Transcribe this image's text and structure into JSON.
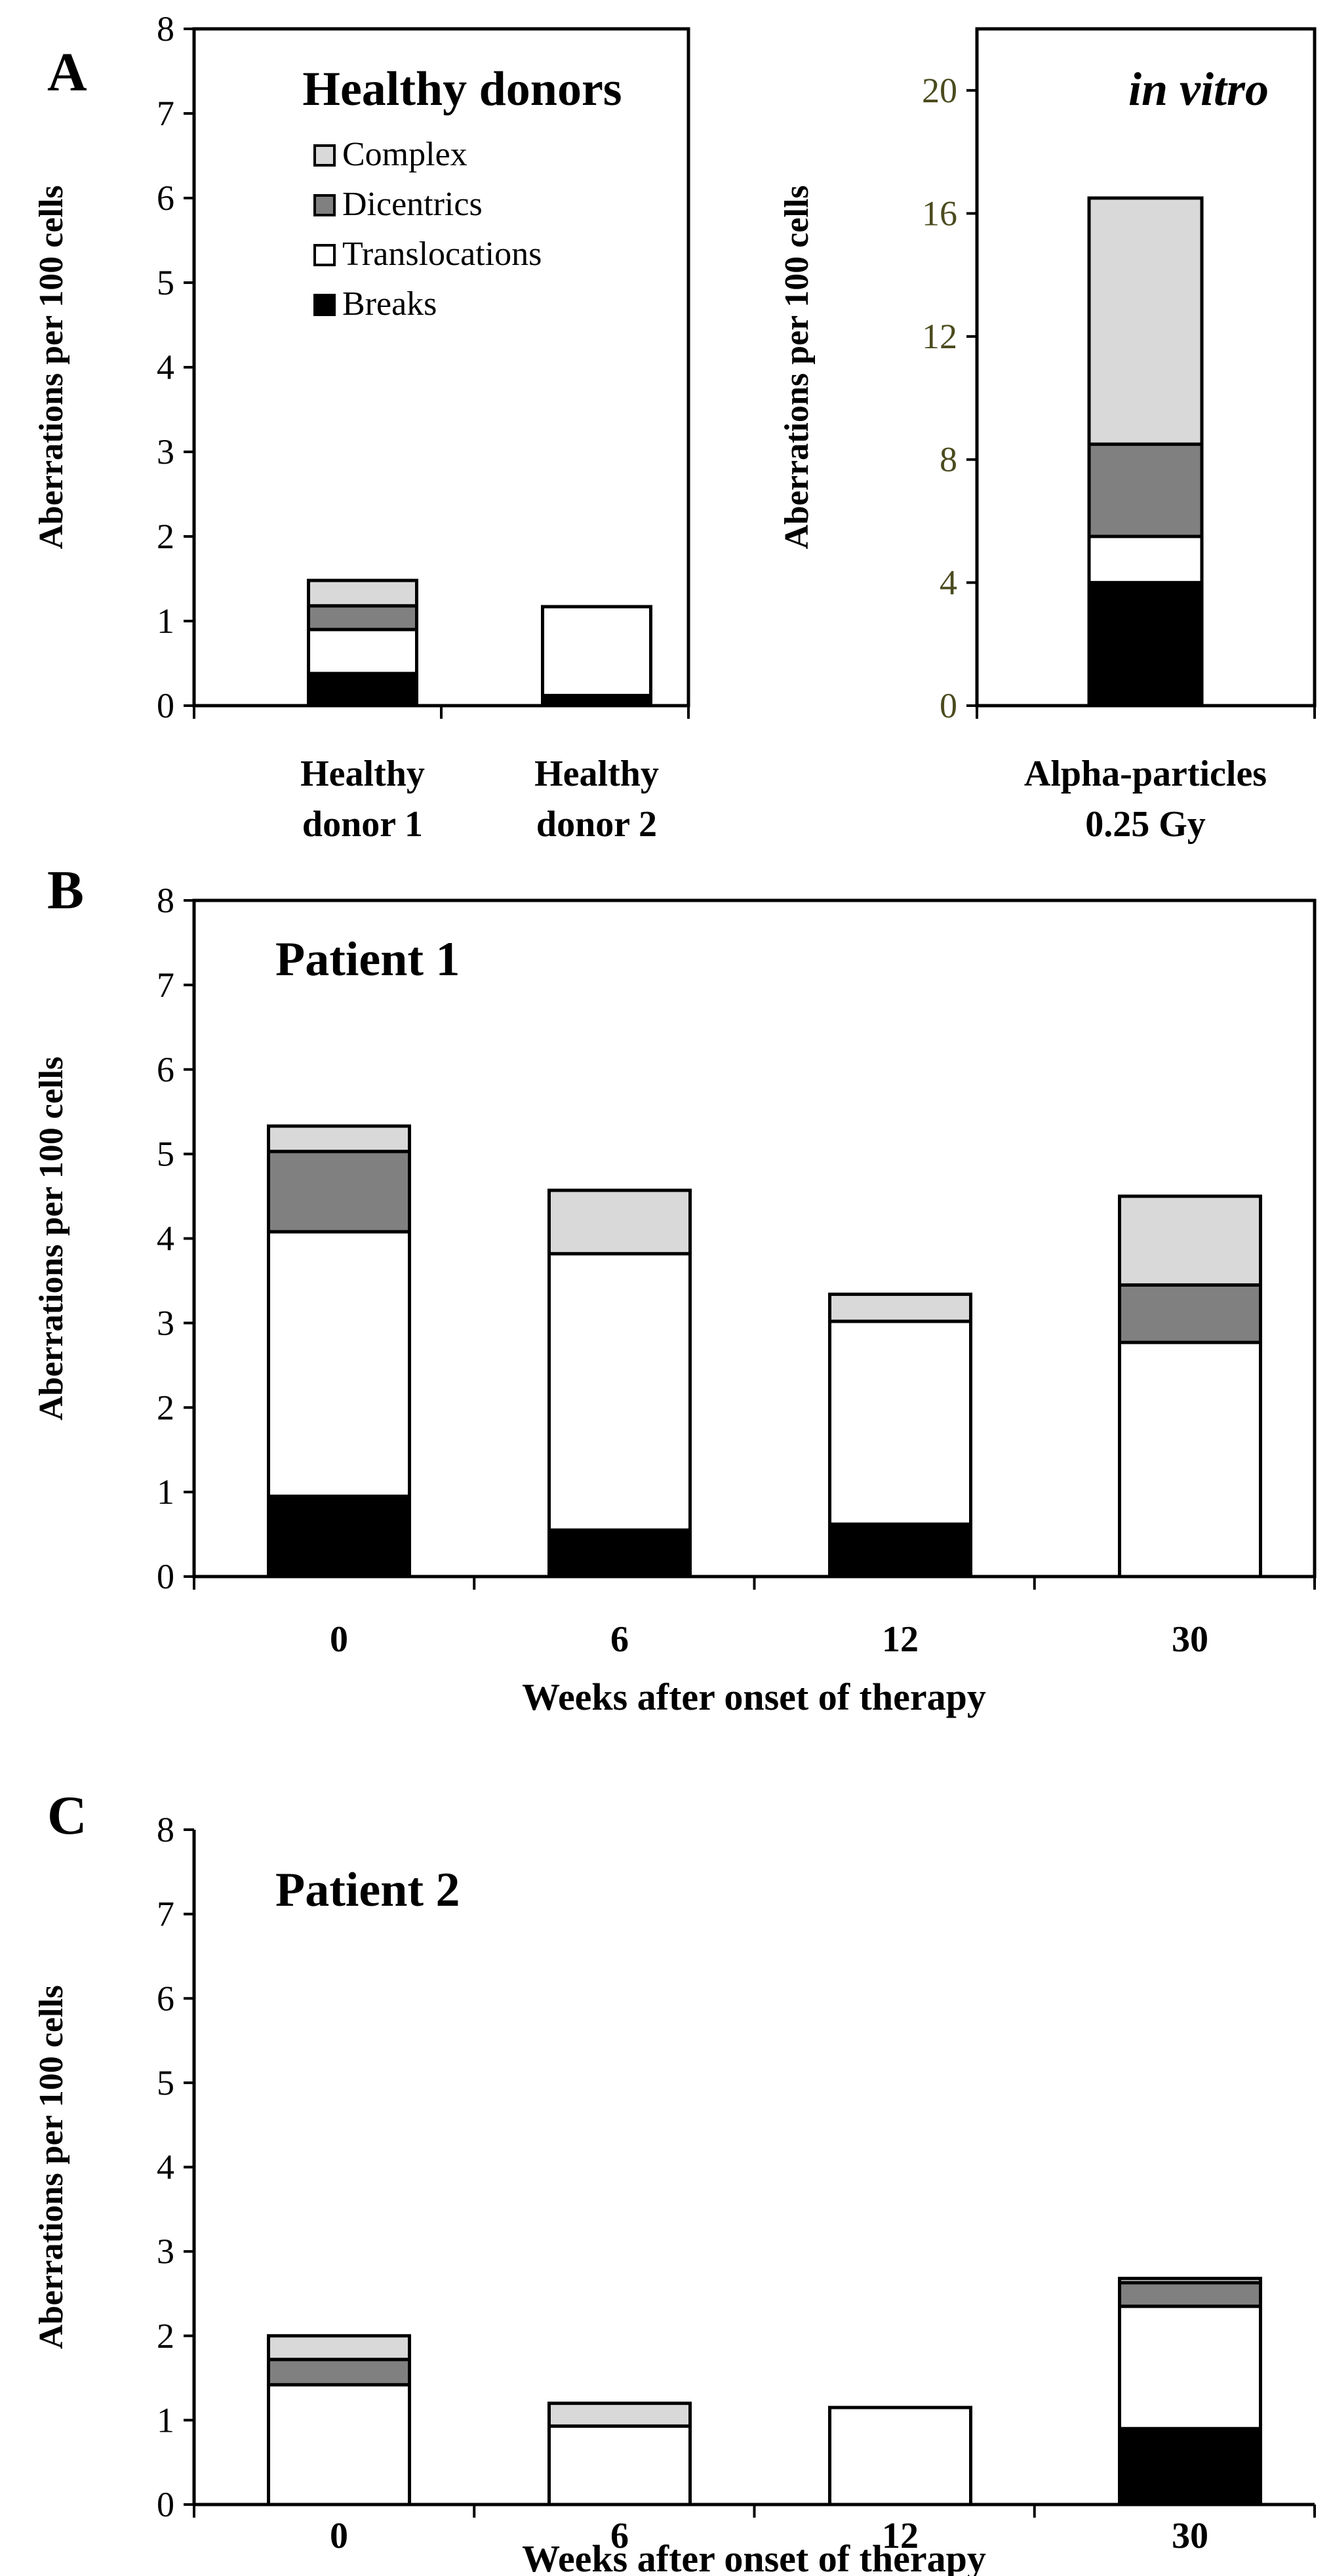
{
  "figure": {
    "panel_labels": [
      "A",
      "B",
      "C"
    ],
    "colors": {
      "breaks": "#000000",
      "translocations": "#ffffff",
      "dicentrics": "#808080",
      "complex": "#d9d9d9",
      "axis": "#000000",
      "vitro_ticks": "#4b4b1f"
    }
  },
  "legend": {
    "items": [
      {
        "label": "Complex",
        "color": "#d9d9d9"
      },
      {
        "label": "Dicentrics",
        "color": "#808080"
      },
      {
        "label": "Translocations",
        "color": "#ffffff"
      },
      {
        "label": "Breaks",
        "color": "#000000"
      }
    ]
  },
  "chart_data": [
    {
      "id": "A1",
      "panel": "A",
      "type": "bar",
      "stacked": true,
      "title": "Healthy donors",
      "ylabel": "Aberrations per 100 cells",
      "xlabel": "",
      "ylim": [
        0,
        8
      ],
      "yticks": [
        "0",
        "1",
        "2",
        "3",
        "4",
        "5",
        "6",
        "7",
        "8"
      ],
      "categories": [
        [
          "Healthy",
          "donor 1"
        ],
        [
          "Healthy",
          "donor 2"
        ]
      ],
      "series": [
        {
          "name": "Breaks",
          "values": [
            0.38,
            0.12
          ]
        },
        {
          "name": "Translocations",
          "values": [
            0.52,
            1.05
          ]
        },
        {
          "name": "Dicentrics",
          "values": [
            0.28,
            0
          ]
        },
        {
          "name": "Complex",
          "values": [
            0.3,
            0
          ]
        }
      ]
    },
    {
      "id": "A2",
      "panel": "A",
      "type": "bar",
      "stacked": true,
      "title": "in vitro",
      "ylabel": "Aberrations per 100 cells",
      "xlabel": "",
      "ylim": [
        0,
        22
      ],
      "yticks": [
        "0",
        "4",
        "8",
        "12",
        "16",
        "20"
      ],
      "categories": [
        [
          "Alpha-particles",
          "0.25 Gy"
        ]
      ],
      "series": [
        {
          "name": "Breaks",
          "values": [
            4.0
          ]
        },
        {
          "name": "Translocations",
          "values": [
            1.5
          ]
        },
        {
          "name": "Dicentrics",
          "values": [
            3.0
          ]
        },
        {
          "name": "Complex",
          "values": [
            8.0
          ]
        }
      ]
    },
    {
      "id": "B",
      "panel": "B",
      "type": "bar",
      "stacked": true,
      "title": "Patient 1",
      "ylabel": "Aberrations per 100 cells",
      "xlabel": "Weeks after onset of therapy",
      "ylim": [
        0,
        8
      ],
      "yticks": [
        "0",
        "1",
        "2",
        "3",
        "4",
        "5",
        "6",
        "7",
        "8"
      ],
      "categories": [
        [
          "0"
        ],
        [
          "6"
        ],
        [
          "12"
        ],
        [
          "30"
        ]
      ],
      "series": [
        {
          "name": "Breaks",
          "values": [
            0.95,
            0.55,
            0.62,
            0
          ]
        },
        {
          "name": "Translocations",
          "values": [
            3.13,
            3.27,
            2.4,
            2.77
          ]
        },
        {
          "name": "Dicentrics",
          "values": [
            0.95,
            0,
            0,
            0.68
          ]
        },
        {
          "name": "Complex",
          "values": [
            0.3,
            0.75,
            0.32,
            1.05
          ]
        }
      ]
    },
    {
      "id": "C",
      "panel": "C",
      "type": "bar",
      "stacked": true,
      "title": "Patient 2",
      "ylabel": "Aberrations per 100 cells",
      "xlabel": "Weeks after onset of therapy",
      "ylim": [
        0,
        8
      ],
      "yticks": [
        "0",
        "1",
        "2",
        "3",
        "4",
        "5",
        "6",
        "7",
        "8"
      ],
      "categories": [
        [
          "0"
        ],
        [
          "6"
        ],
        [
          "12"
        ],
        [
          "30"
        ]
      ],
      "series": [
        {
          "name": "Breaks",
          "values": [
            0,
            0,
            0,
            0.9
          ]
        },
        {
          "name": "Translocations",
          "values": [
            1.42,
            0.93,
            1.15,
            1.45
          ]
        },
        {
          "name": "Dicentrics",
          "values": [
            0.3,
            0,
            0,
            0.28
          ]
        },
        {
          "name": "Complex",
          "values": [
            0.28,
            0.27,
            0,
            0.05
          ]
        }
      ]
    }
  ]
}
